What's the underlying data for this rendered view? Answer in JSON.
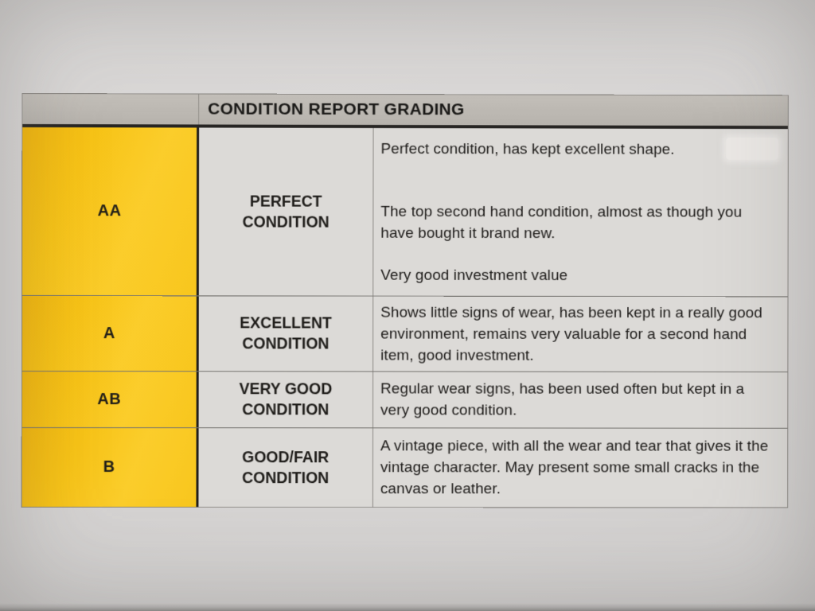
{
  "document": {
    "title": "CONDITION REPORT GRADING",
    "rows": [
      {
        "grade": "AA",
        "condition_lines": [
          "PERFECT",
          "CONDITION"
        ],
        "paragraphs": [
          "Perfect condition, has kept excellent shape.",
          "The top second hand condition, almost as though you have bought it brand new.",
          "Very good investment value"
        ]
      },
      {
        "grade": "A",
        "condition_lines": [
          "EXCELLENT",
          "CONDITION"
        ],
        "paragraphs": [
          "Shows little signs of wear, has been kept in a really good environment, remains very valuable for a second hand item, good investment."
        ]
      },
      {
        "grade": "AB",
        "condition_lines": [
          "VERY GOOD",
          "CONDITION"
        ],
        "paragraphs": [
          "Regular wear signs, has been used often but kept in a very good condition."
        ]
      },
      {
        "grade": "B",
        "condition_lines": [
          "GOOD/FAIR",
          "CONDITION"
        ],
        "paragraphs": [
          "A vintage piece, with all the wear and tear that gives it the vintage character. May present some small cracks in the canvas or leather."
        ]
      }
    ],
    "colors": {
      "grade_column_yellow": "#f8c61d",
      "header_bar_gray": "#bcb8b2",
      "cell_background": "#dcdad7",
      "paper_background": "#d7d5d4",
      "border_dark": "#211f1d",
      "text": "#1d1b19"
    }
  }
}
